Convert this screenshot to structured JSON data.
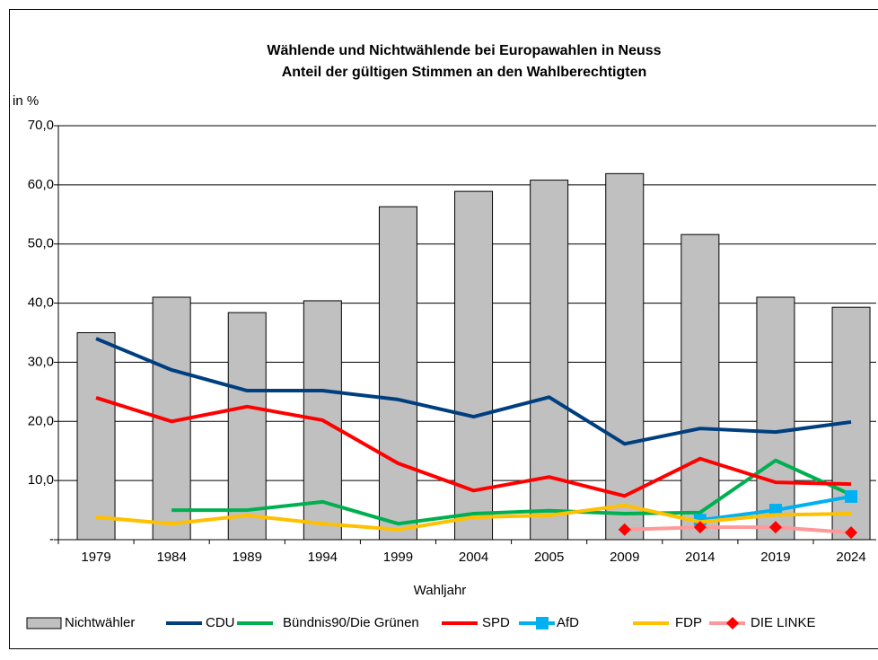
{
  "chart_data": {
    "type": "bar_line",
    "title": "Wählende und Nichtwählende bei Europawahlen in Neuss",
    "subtitle": "Anteil der gültigen Stimmen an den Wahlberechtigten",
    "y_label": "in %",
    "x_label": "Wahljahr",
    "categories": [
      "1979",
      "1984",
      "1989",
      "1994",
      "1999",
      "2004",
      "2005",
      "2009",
      "2014",
      "2019",
      "2024"
    ],
    "ylim": [
      0,
      70
    ],
    "yticks": [
      {
        "value": 0,
        "label": "-"
      },
      {
        "value": 10,
        "label": "10,0"
      },
      {
        "value": 20,
        "label": "20,0"
      },
      {
        "value": 30,
        "label": "30,0"
      },
      {
        "value": 40,
        "label": "40,0"
      },
      {
        "value": 50,
        "label": "50,0"
      },
      {
        "value": 60,
        "label": "60,0"
      },
      {
        "value": 70,
        "label": "70,0"
      }
    ],
    "grid": true,
    "legend": "bottom",
    "series": [
      {
        "name": "Nichtwähler",
        "type": "bar",
        "color": "#c0c0c0",
        "values": [
          35.0,
          41.0,
          38.4,
          40.4,
          56.3,
          58.9,
          60.8,
          61.9,
          51.6,
          41.0,
          39.3
        ]
      },
      {
        "name": "CDU",
        "type": "line",
        "color": "#003f7f",
        "values": [
          34.0,
          28.7,
          25.2,
          25.2,
          23.7,
          20.8,
          24.1,
          16.2,
          18.8,
          18.2,
          19.9
        ]
      },
      {
        "name": "Bündnis90/Die Grünen",
        "type": "line",
        "color": "#00b050",
        "values": [
          null,
          5.0,
          5.0,
          6.4,
          2.7,
          4.4,
          4.9,
          4.4,
          4.6,
          13.4,
          7.6
        ]
      },
      {
        "name": "SPD",
        "type": "line",
        "color": "#ff0000",
        "values": [
          24.0,
          20.0,
          22.5,
          20.2,
          12.9,
          8.3,
          10.6,
          7.4,
          13.7,
          9.7,
          9.4
        ]
      },
      {
        "name": "AfD",
        "type": "line",
        "color": "#00b0f0",
        "marker": "square",
        "values": [
          null,
          null,
          null,
          null,
          null,
          null,
          null,
          null,
          3.3,
          5.0,
          7.3
        ]
      },
      {
        "name": "FDP",
        "type": "line",
        "color": "#ffc000",
        "values": [
          3.8,
          2.7,
          4.1,
          2.7,
          1.7,
          3.8,
          4.1,
          5.8,
          3.0,
          4.2,
          4.4
        ]
      },
      {
        "name": "DIE LINKE",
        "type": "line",
        "color": "#ff9999",
        "marker": "diamond",
        "marker_color": "#ff0000",
        "values": [
          null,
          null,
          null,
          null,
          null,
          null,
          null,
          1.7,
          2.1,
          2.1,
          1.2
        ]
      }
    ]
  }
}
